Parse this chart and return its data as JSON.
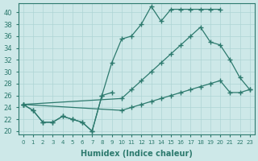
{
  "bg_color": "#cde8e8",
  "line_color": "#2d7a6e",
  "grid_color": "#aed4d4",
  "xlabel": "Humidex (Indice chaleur)",
  "ylim": [
    19.5,
    41.5
  ],
  "xlim": [
    -0.5,
    23.5
  ],
  "yticks": [
    20,
    22,
    24,
    26,
    28,
    30,
    32,
    34,
    36,
    38,
    40
  ],
  "xticks": [
    0,
    1,
    2,
    3,
    4,
    5,
    6,
    7,
    8,
    9,
    10,
    11,
    12,
    13,
    14,
    15,
    16,
    17,
    18,
    19,
    20,
    21,
    22,
    23
  ],
  "line_top_x": [
    0,
    1,
    2,
    3,
    4,
    5,
    6,
    7,
    8,
    9,
    10,
    11,
    12,
    13,
    14,
    15,
    16,
    17,
    18,
    19,
    20
  ],
  "line_top_y": [
    24.5,
    23.5,
    21.5,
    21.5,
    22.5,
    22.0,
    21.5,
    20.0,
    26.0,
    31.5,
    35.5,
    36.0,
    38.0,
    41.0,
    38.5,
    40.5,
    40.5,
    40.5,
    40.5,
    40.5,
    40.5
  ],
  "line_wavy_x": [
    0,
    1,
    2,
    3,
    4,
    5,
    6,
    7,
    8,
    9
  ],
  "line_wavy_y": [
    24.5,
    23.5,
    21.5,
    21.5,
    22.5,
    22.0,
    21.5,
    20.0,
    26.0,
    26.5
  ],
  "line_mid_x": [
    0,
    10,
    11,
    12,
    13,
    14,
    15,
    16,
    17,
    18,
    19,
    20,
    21,
    22,
    23
  ],
  "line_mid_y": [
    24.5,
    25.5,
    27.0,
    28.5,
    30.0,
    31.5,
    33.0,
    34.5,
    36.0,
    37.5,
    35.0,
    34.5,
    32.0,
    29.0,
    27.0
  ],
  "line_low_x": [
    0,
    10,
    11,
    12,
    13,
    14,
    15,
    16,
    17,
    18,
    19,
    20,
    21,
    22,
    23
  ],
  "line_low_y": [
    24.5,
    23.5,
    24.0,
    24.5,
    25.0,
    25.5,
    26.0,
    26.5,
    27.0,
    27.5,
    28.0,
    28.5,
    26.5,
    26.5,
    27.0
  ]
}
